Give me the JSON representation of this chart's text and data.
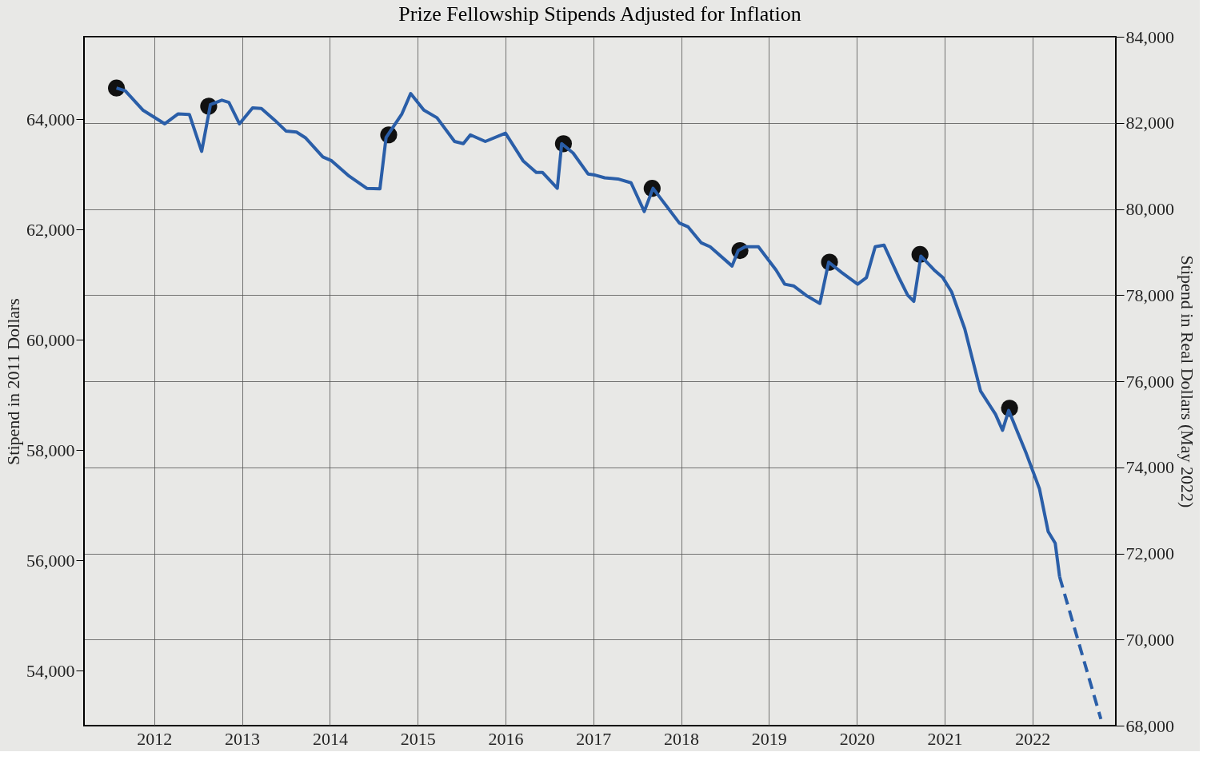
{
  "chart_data": {
    "type": "line",
    "title": "Prize Fellowship Stipends Adjusted for Inflation",
    "ylabel": "Stipend in 2011 Dollars",
    "y2label": "Stipend in Real Dollars (May 2022)",
    "xlim": [
      2011.2,
      2022.95
    ],
    "xticks": [
      2012,
      2013,
      2014,
      2015,
      2016,
      2017,
      2018,
      2019,
      2020,
      2021,
      2022
    ],
    "ylim": [
      53000,
      65500
    ],
    "yticks": [
      {
        "value": 54000,
        "label": "54,000"
      },
      {
        "value": 56000,
        "label": "56,000"
      },
      {
        "value": 58000,
        "label": "58,000"
      },
      {
        "value": 60000,
        "label": "60,000"
      },
      {
        "value": 62000,
        "label": "62,000"
      },
      {
        "value": 64000,
        "label": "64,000"
      }
    ],
    "y2lim": [
      68000,
      84000
    ],
    "y2ticks": [
      {
        "value": 68000,
        "label": "68,000"
      },
      {
        "value": 70000,
        "label": "70,000"
      },
      {
        "value": 72000,
        "label": "72,000"
      },
      {
        "value": 74000,
        "label": "74,000"
      },
      {
        "value": 76000,
        "label": "76,000"
      },
      {
        "value": 78000,
        "label": "78,000"
      },
      {
        "value": 80000,
        "label": "80,000"
      },
      {
        "value": 82000,
        "label": "82,000"
      },
      {
        "value": 84000,
        "label": "84,000"
      }
    ],
    "grid": true,
    "series": [
      {
        "color": "#2a5ea8",
        "line_style": "solid",
        "x": [
          2011.57,
          2011.67,
          2011.87,
          2012.12,
          2012.27,
          2012.4,
          2012.54,
          2012.64,
          2012.77,
          2012.85,
          2012.97,
          2013.12,
          2013.22,
          2013.37,
          2013.5,
          2013.62,
          2013.72,
          2013.92,
          2014.02,
          2014.22,
          2014.42,
          2014.57,
          2014.64,
          2014.82,
          2014.92,
          2015.07,
          2015.22,
          2015.42,
          2015.52,
          2015.6,
          2015.77,
          2016.0,
          2016.2,
          2016.35,
          2016.42,
          2016.59,
          2016.64,
          2016.77,
          2016.94,
          2017.02,
          2017.13,
          2017.28,
          2017.43,
          2017.58,
          2017.68,
          2017.78,
          2017.98,
          2018.08,
          2018.23,
          2018.33,
          2018.58,
          2018.65,
          2018.73,
          2018.88,
          2019.08,
          2019.18,
          2019.28,
          2019.43,
          2019.58,
          2019.68,
          2019.83,
          2020.01,
          2020.11,
          2020.21,
          2020.31,
          2020.48,
          2020.58,
          2020.65,
          2020.73,
          2020.88,
          2020.98,
          2021.08,
          2021.23,
          2021.41,
          2021.58,
          2021.66,
          2021.73,
          2021.93,
          2022.08,
          2022.18,
          2022.26,
          2022.31
        ],
        "values": [
          64570,
          64520,
          64170,
          63920,
          64100,
          64090,
          63420,
          64270,
          64350,
          64310,
          63920,
          64210,
          64200,
          63990,
          63790,
          63770,
          63670,
          63320,
          63250,
          62970,
          62750,
          62740,
          63670,
          64100,
          64470,
          64170,
          64030,
          63600,
          63560,
          63720,
          63600,
          63750,
          63250,
          63040,
          63040,
          62750,
          63560,
          63390,
          63010,
          62990,
          62940,
          62920,
          62850,
          62330,
          62750,
          62540,
          62120,
          62050,
          61760,
          61690,
          61340,
          61620,
          61690,
          61690,
          61270,
          61010,
          60980,
          60800,
          60660,
          61410,
          61220,
          61010,
          61130,
          61690,
          61720,
          61130,
          60810,
          60700,
          61520,
          61270,
          61130,
          60870,
          60200,
          59070,
          58650,
          58360,
          58720,
          57940,
          57300,
          56520,
          56310,
          55700
        ]
      },
      {
        "color": "#2a5ea8",
        "line_style": "dashed",
        "x": [
          2022.31,
          2022.78
        ],
        "values": [
          55700,
          53120
        ]
      },
      {
        "type": "scatter",
        "color": "#111111",
        "marker": "circle",
        "x": [
          2011.57,
          2012.62,
          2014.67,
          2016.66,
          2017.67,
          2018.67,
          2019.69,
          2020.72,
          2021.74
        ],
        "values": [
          64570,
          64240,
          63720,
          63560,
          62750,
          61620,
          61410,
          61550,
          58760
        ]
      }
    ]
  }
}
